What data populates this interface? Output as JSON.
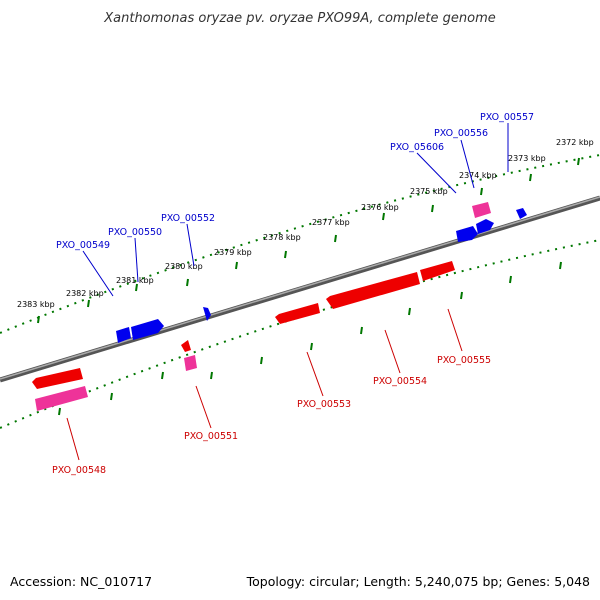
{
  "title": "Xanthomonas oryzae pv. oryzae PXO99A, complete genome",
  "footer": {
    "accession": "Accession: NC_010717",
    "summary": "Topology: circular; Length: 5,240,075 bp; Genes: 5,048"
  },
  "scale_labels": [
    "2372 kbp",
    "2373 kbp",
    "2374 kbp",
    "2375 kbp",
    "2376 kbp",
    "2377 kbp",
    "2378 kbp",
    "2379 kbp",
    "2380 kbp",
    "2381 kbp",
    "2382 kbp",
    "2383 kbp"
  ],
  "genes_top": [
    {
      "label": "PXO_00557",
      "color": "#0000cc"
    },
    {
      "label": "PXO_00556",
      "color": "#0000cc"
    },
    {
      "label": "PXO_05606",
      "color": "#0000cc"
    },
    {
      "label": "PXO_00552",
      "color": "#0000cc"
    },
    {
      "label": "PXO_00550",
      "color": "#0000cc"
    },
    {
      "label": "PXO_00549",
      "color": "#0000cc"
    }
  ],
  "genes_bottom": [
    {
      "label": "PXO_00555",
      "color": "#cc0000"
    },
    {
      "label": "PXO_00554",
      "color": "#cc0000"
    },
    {
      "label": "PXO_00553",
      "color": "#cc0000"
    },
    {
      "label": "PXO_00551",
      "color": "#cc0000"
    },
    {
      "label": "PXO_00548",
      "color": "#cc0000"
    }
  ],
  "colors": {
    "forward_gene": "#0000ee",
    "reverse_gene": "#ee0000",
    "rna_gene": "#ee3399",
    "backbone": "#777777",
    "scale_ticks": "#007700"
  }
}
